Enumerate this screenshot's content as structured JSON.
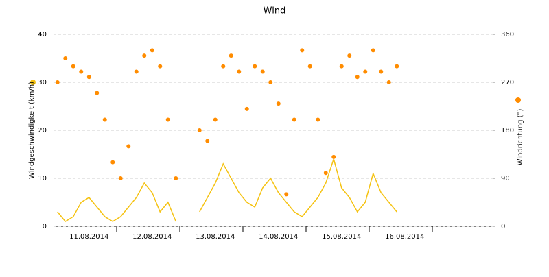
{
  "chart_data": {
    "type": "line_scatter",
    "title": "Wind",
    "categories": [
      null,
      null,
      null,
      null,
      "11.08.2014",
      null,
      null,
      null,
      null,
      null,
      null,
      null,
      "12.08.2014",
      null,
      null,
      null,
      null,
      null,
      null,
      null,
      "13.08.2014",
      null,
      null,
      null,
      null,
      null,
      null,
      null,
      "14.08.2014",
      null,
      null,
      null,
      null,
      null,
      null,
      null,
      "15.08.2014",
      null,
      null,
      null,
      null,
      null,
      null,
      null,
      "16.08.2014",
      null,
      null,
      null,
      null,
      null,
      null,
      null,
      null,
      null,
      null,
      null
    ],
    "series": [
      {
        "name": "Windgeschwindigkeit (km/h)",
        "color": "#f5c211",
        "kind": "line",
        "axis": "y",
        "values": [
          3,
          1,
          2,
          5,
          6,
          4,
          2,
          1,
          2,
          4,
          6,
          9,
          7,
          3,
          5,
          1,
          null,
          null,
          3,
          6,
          9,
          13,
          10,
          7,
          5,
          4,
          8,
          10,
          7,
          5,
          3,
          2,
          4,
          6,
          9,
          14,
          8,
          6,
          3,
          5,
          11,
          7,
          5,
          3,
          null,
          null,
          null,
          null,
          null,
          null,
          null,
          null,
          null,
          null,
          null,
          null
        ]
      },
      {
        "name": "Windrichtung (°)",
        "color": "#ff8c00",
        "kind": "scatter",
        "axis": "y2",
        "values": [
          270,
          315,
          300,
          290,
          280,
          250,
          200,
          120,
          90,
          150,
          290,
          320,
          330,
          300,
          200,
          90,
          null,
          null,
          180,
          160,
          200,
          300,
          320,
          290,
          220,
          300,
          290,
          270,
          230,
          60,
          200,
          330,
          300,
          200,
          100,
          130,
          300,
          320,
          280,
          290,
          330,
          290,
          270,
          300,
          null,
          null,
          null,
          null,
          null,
          null,
          null,
          null,
          null,
          null,
          null,
          null
        ]
      }
    ],
    "ylim": [
      0,
      40
    ],
    "yticks": [
      0,
      10,
      20,
      30,
      40
    ],
    "y2lim": [
      0,
      360
    ],
    "y2ticks": [
      0,
      90,
      180,
      270,
      360
    ],
    "grid": true
  }
}
